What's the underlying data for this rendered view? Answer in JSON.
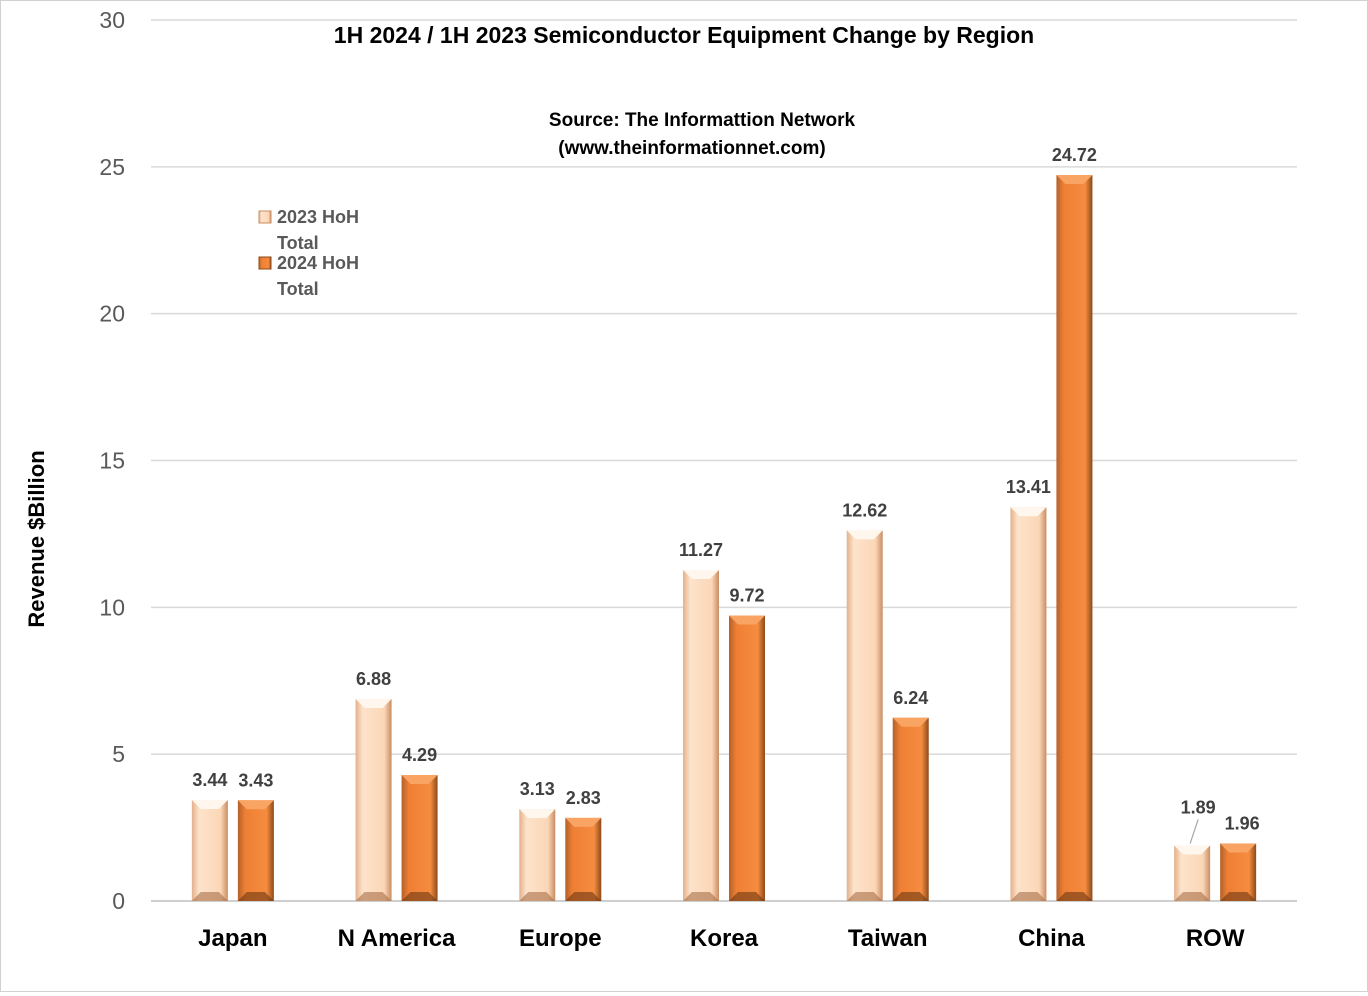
{
  "chart_data": {
    "type": "bar",
    "title": "1H 2024 / 1H 2023 Semiconductor Equipment Change by Region",
    "subtitle_lines": [
      "Source: The Informattion Network",
      "(www.theinformationnet.com)"
    ],
    "ylabel": "Revenue $Billion",
    "xlabel": "",
    "ylim": [
      0,
      30
    ],
    "yticks": [
      0,
      5,
      10,
      15,
      20,
      25,
      30
    ],
    "grid": true,
    "legend_position": "top-left",
    "categories": [
      "Japan",
      "N America",
      "Europe",
      "Korea",
      "Taiwan",
      "China",
      "ROW"
    ],
    "series": [
      {
        "name_lines": [
          "2023 HoH",
          "Total"
        ],
        "values": [
          3.44,
          6.88,
          3.13,
          11.27,
          12.62,
          13.41,
          1.89
        ],
        "labels": [
          "3.44",
          "6.88",
          "3.13",
          "11.27",
          "12.62",
          "13.41",
          "1.89"
        ]
      },
      {
        "name_lines": [
          "2024 HoH",
          "Total"
        ],
        "values": [
          3.43,
          4.29,
          2.83,
          9.72,
          6.24,
          24.72,
          1.96
        ],
        "labels": [
          "3.43",
          "4.29",
          "2.83",
          "9.72",
          "6.24",
          "24.72",
          "1.96"
        ]
      }
    ],
    "colors": {
      "series1_light": "#fde0c6",
      "series1_mid": "#f7c49b",
      "series1_dark": "#c98d63",
      "series2_light": "#f7954a",
      "series2_mid": "#ed7d31",
      "series2_dark": "#8c4a1a",
      "grid": "#d9d9d9",
      "axis": "#bfbfbf"
    }
  }
}
